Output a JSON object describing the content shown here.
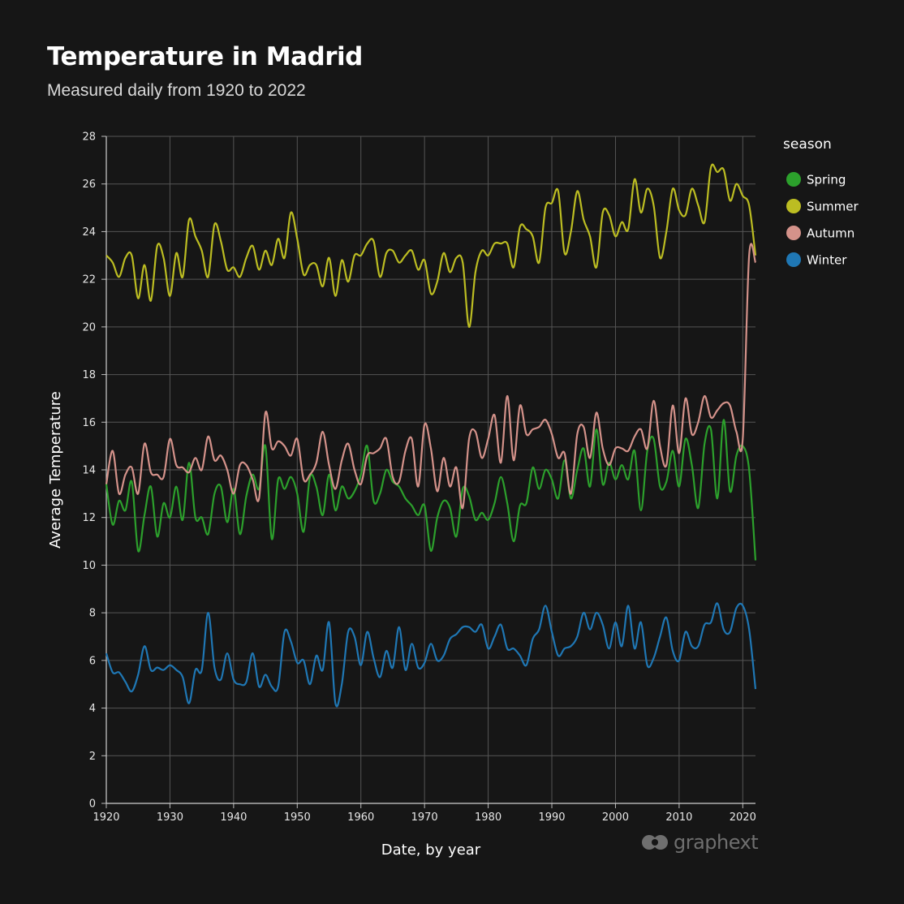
{
  "page": {
    "title": "Temperature in Madrid",
    "subtitle": "Measured daily from 1920 to 2022",
    "watermark": "graphext"
  },
  "colors": {
    "background": "#161616",
    "grid": "#555555",
    "Spring": "#2ca02c",
    "Summer": "#bcbd22",
    "Autumn": "#d4928a",
    "Winter": "#1f77b4"
  },
  "chart_data": {
    "type": "line",
    "title": "Temperature in Madrid",
    "subtitle": "Measured daily from 1920 to 2022",
    "xlabel": "Date, by year",
    "ylabel": "Average Temperature",
    "xlim": [
      1920,
      2022
    ],
    "ylim": [
      0,
      28
    ],
    "x_ticks": [
      1920,
      1930,
      1940,
      1950,
      1960,
      1970,
      1980,
      1990,
      2000,
      2010,
      2020
    ],
    "y_ticks": [
      0,
      2,
      4,
      6,
      8,
      10,
      12,
      14,
      16,
      18,
      20,
      22,
      24,
      26,
      28
    ],
    "grid": true,
    "legend": {
      "title": "season",
      "position": "right"
    },
    "x": [
      1920,
      1921,
      1922,
      1923,
      1924,
      1925,
      1926,
      1927,
      1928,
      1929,
      1930,
      1931,
      1932,
      1933,
      1934,
      1935,
      1936,
      1937,
      1938,
      1939,
      1940,
      1941,
      1942,
      1943,
      1944,
      1945,
      1946,
      1947,
      1948,
      1949,
      1950,
      1951,
      1952,
      1953,
      1954,
      1955,
      1956,
      1957,
      1958,
      1959,
      1960,
      1961,
      1962,
      1963,
      1964,
      1965,
      1966,
      1967,
      1968,
      1969,
      1970,
      1971,
      1972,
      1973,
      1974,
      1975,
      1976,
      1977,
      1978,
      1979,
      1980,
      1981,
      1982,
      1983,
      1984,
      1985,
      1986,
      1987,
      1988,
      1989,
      1990,
      1991,
      1992,
      1993,
      1994,
      1995,
      1996,
      1997,
      1998,
      1999,
      2000,
      2001,
      2002,
      2003,
      2004,
      2005,
      2006,
      2007,
      2008,
      2009,
      2010,
      2011,
      2012,
      2013,
      2014,
      2015,
      2016,
      2017,
      2018,
      2019,
      2020,
      2021,
      2022
    ],
    "series": [
      {
        "name": "Spring",
        "values": [
          13.4,
          11.7,
          12.7,
          12.3,
          13.5,
          10.6,
          12.1,
          13.3,
          11.2,
          12.6,
          12.0,
          13.3,
          11.9,
          14.3,
          12.0,
          12.0,
          11.3,
          13.0,
          13.3,
          11.8,
          13.2,
          11.3,
          12.9,
          13.8,
          13.2,
          15.0,
          11.1,
          13.6,
          13.2,
          13.7,
          13.0,
          11.4,
          13.7,
          13.3,
          12.1,
          13.8,
          12.3,
          13.3,
          12.8,
          13.1,
          13.8,
          15.0,
          12.7,
          13.0,
          14.0,
          13.5,
          13.3,
          12.8,
          12.5,
          12.1,
          12.5,
          10.6,
          12.0,
          12.7,
          12.4,
          11.2,
          13.2,
          12.9,
          11.9,
          12.2,
          11.9,
          12.6,
          13.7,
          12.6,
          11.0,
          12.5,
          12.6,
          14.1,
          13.2,
          14.0,
          13.6,
          12.8,
          14.4,
          12.8,
          14.0,
          14.9,
          13.3,
          15.7,
          13.4,
          14.3,
          13.6,
          14.2,
          13.6,
          14.8,
          12.3,
          14.8,
          15.3,
          13.3,
          13.5,
          14.8,
          13.3,
          15.3,
          14.2,
          12.4,
          15.1,
          15.7,
          12.8,
          16.1,
          13.1,
          14.6,
          15.0,
          14.0,
          10.2
        ]
      },
      {
        "name": "Summer",
        "values": [
          23.0,
          22.7,
          22.1,
          22.9,
          23.0,
          21.2,
          22.6,
          21.1,
          23.4,
          22.9,
          21.3,
          23.1,
          22.1,
          24.5,
          23.8,
          23.2,
          22.1,
          24.3,
          23.6,
          22.4,
          22.5,
          22.1,
          22.9,
          23.4,
          22.4,
          23.2,
          22.6,
          23.7,
          22.9,
          24.8,
          23.7,
          22.2,
          22.6,
          22.6,
          21.7,
          22.9,
          21.3,
          22.8,
          21.9,
          23.0,
          23.0,
          23.5,
          23.6,
          22.1,
          23.1,
          23.2,
          22.7,
          23.0,
          23.2,
          22.4,
          22.8,
          21.4,
          21.9,
          23.1,
          22.3,
          22.9,
          22.7,
          20.0,
          22.3,
          23.2,
          23.0,
          23.5,
          23.5,
          23.5,
          22.5,
          24.2,
          24.1,
          23.8,
          22.7,
          25.0,
          25.2,
          25.7,
          23.1,
          24.0,
          25.7,
          24.5,
          23.8,
          22.5,
          24.8,
          24.7,
          23.8,
          24.4,
          24.1,
          26.2,
          24.8,
          25.8,
          25.1,
          22.9,
          24.0,
          25.8,
          24.9,
          24.7,
          25.8,
          25.1,
          24.4,
          26.7,
          26.5,
          26.6,
          25.3,
          26.0,
          25.5,
          25.1,
          23.0
        ]
      },
      {
        "name": "Autumn",
        "values": [
          13.4,
          14.8,
          13.0,
          13.8,
          14.1,
          13.0,
          15.1,
          13.9,
          13.8,
          13.7,
          15.3,
          14.2,
          14.1,
          13.9,
          14.5,
          14.0,
          15.4,
          14.4,
          14.6,
          14.0,
          13.0,
          14.2,
          14.2,
          13.6,
          12.8,
          16.4,
          14.9,
          15.2,
          15.0,
          14.6,
          15.3,
          13.6,
          13.8,
          14.3,
          15.6,
          14.2,
          13.2,
          14.4,
          15.1,
          14.0,
          13.4,
          14.6,
          14.7,
          14.9,
          15.3,
          13.7,
          13.5,
          14.8,
          15.3,
          13.3,
          15.9,
          14.9,
          13.1,
          14.5,
          13.3,
          14.1,
          12.4,
          15.3,
          15.6,
          14.5,
          15.3,
          16.3,
          14.3,
          17.1,
          14.4,
          16.7,
          15.5,
          15.7,
          15.8,
          16.1,
          15.5,
          14.5,
          14.7,
          13.0,
          15.5,
          15.8,
          14.5,
          16.4,
          14.9,
          14.2,
          14.9,
          14.9,
          14.8,
          15.4,
          15.7,
          14.9,
          16.9,
          15.0,
          14.2,
          16.7,
          14.7,
          17.0,
          15.5,
          16.0,
          17.1,
          16.2,
          16.5,
          16.8,
          16.7,
          15.6,
          15.3,
          23.0,
          22.7
        ]
      },
      {
        "name": "Winter",
        "values": [
          6.3,
          5.5,
          5.5,
          5.1,
          4.7,
          5.4,
          6.6,
          5.6,
          5.7,
          5.6,
          5.8,
          5.6,
          5.3,
          4.2,
          5.6,
          5.6,
          8.0,
          5.7,
          5.2,
          6.3,
          5.2,
          5.0,
          5.1,
          6.3,
          4.9,
          5.4,
          4.9,
          4.9,
          7.2,
          6.8,
          5.9,
          6.0,
          5.0,
          6.2,
          5.6,
          7.6,
          4.2,
          5.0,
          7.2,
          7.0,
          5.8,
          7.2,
          6.1,
          5.3,
          6.4,
          5.7,
          7.4,
          5.6,
          6.7,
          5.7,
          5.9,
          6.7,
          6.0,
          6.2,
          6.9,
          7.1,
          7.4,
          7.4,
          7.2,
          7.5,
          6.5,
          7.0,
          7.5,
          6.5,
          6.5,
          6.2,
          5.8,
          6.9,
          7.3,
          8.3,
          7.2,
          6.2,
          6.5,
          6.6,
          7.0,
          8.0,
          7.3,
          8.0,
          7.5,
          6.5,
          7.6,
          6.6,
          8.3,
          6.5,
          7.6,
          5.8,
          6.1,
          7.0,
          7.8,
          6.4,
          6.0,
          7.2,
          6.6,
          6.6,
          7.5,
          7.6,
          8.4,
          7.3,
          7.2,
          8.2,
          8.3,
          7.3,
          4.8
        ]
      }
    ]
  }
}
